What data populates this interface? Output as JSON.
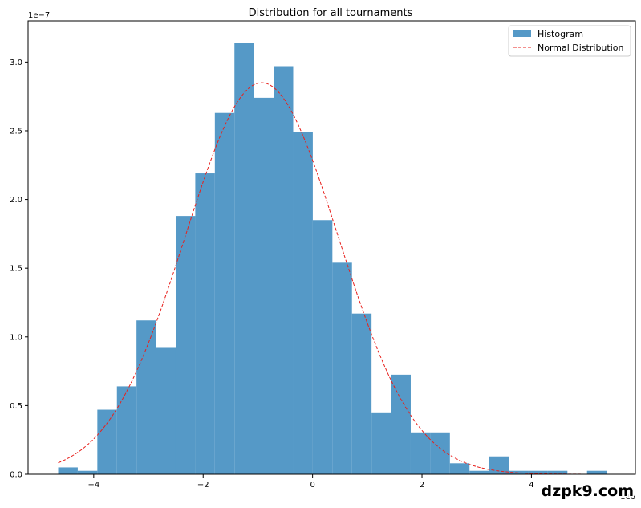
{
  "chart_data": {
    "type": "bar",
    "title": "Distribution for all tournaments",
    "xlabel": "",
    "ylabel": "",
    "y_scale_label": "1e−7",
    "x_scale_label": "1e6",
    "xlim": [
      -5.2,
      5.9
    ],
    "ylim": [
      0,
      3.3
    ],
    "x_ticks": [
      -4,
      -2,
      0,
      2,
      4
    ],
    "x_tick_labels": [
      "−4",
      "−2",
      "0",
      "2",
      "4"
    ],
    "y_ticks": [
      0,
      0.5,
      1.0,
      1.5,
      2.0,
      2.5,
      3.0
    ],
    "y_tick_labels": [
      "0.0",
      "0.5",
      "1.0",
      "1.5",
      "2.0",
      "2.5",
      "3.0"
    ],
    "grid": false,
    "legend_position": "top-right",
    "histogram": {
      "name": "Histogram",
      "color": "#5599c7",
      "bin_start": -4.65,
      "bin_width": 0.358,
      "values": [
        0.05,
        0.025,
        0.47,
        0.64,
        1.12,
        0.92,
        1.88,
        2.19,
        2.63,
        3.14,
        2.74,
        2.97,
        2.49,
        1.85,
        1.54,
        1.17,
        0.445,
        0.725,
        0.305,
        0.305,
        0.08,
        0.025,
        0.13,
        0.025,
        0.025,
        0.025,
        0.0,
        0.025
      ]
    },
    "normal_curve": {
      "name": "Normal Distribution",
      "color": "#e8201c",
      "x_start": -4.65,
      "x_end": 4.9,
      "mean": -0.93,
      "std": 1.4,
      "peak": 2.85
    }
  },
  "watermark": "dzpk9.com"
}
